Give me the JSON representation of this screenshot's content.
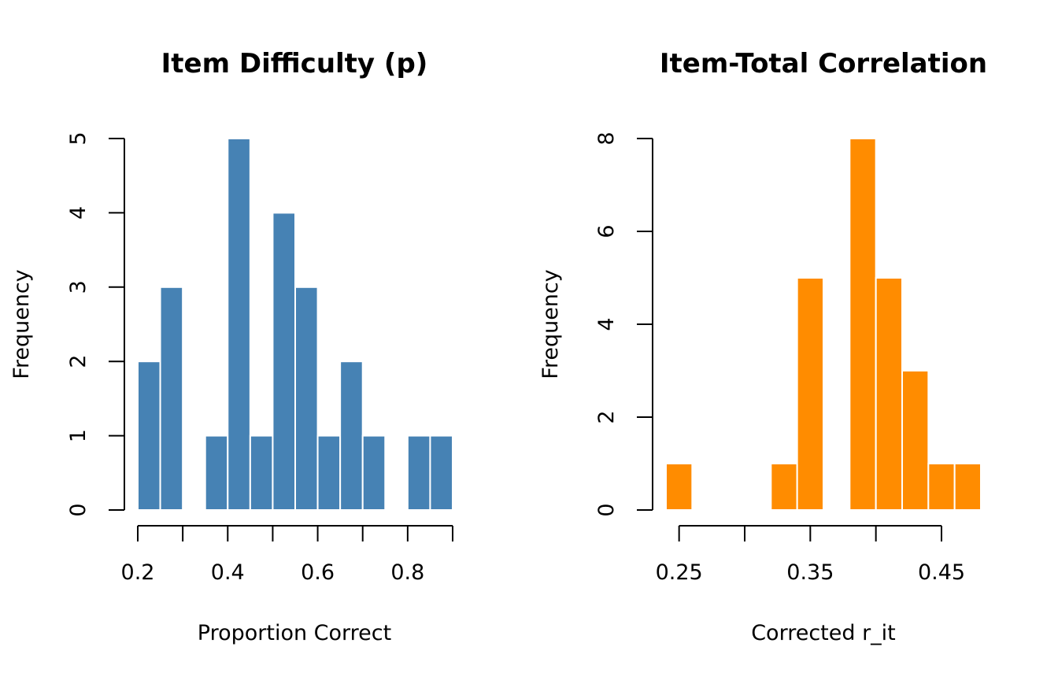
{
  "chart_data": [
    {
      "type": "bar",
      "title": "Item Difficulty (p)",
      "xlabel": "Proportion Correct",
      "ylabel": "Frequency",
      "color": "#4682B4",
      "bins": [
        {
          "x0": 0.2,
          "x1": 0.25,
          "count": 2
        },
        {
          "x0": 0.25,
          "x1": 0.3,
          "count": 3
        },
        {
          "x0": 0.3,
          "x1": 0.35,
          "count": 0
        },
        {
          "x0": 0.35,
          "x1": 0.4,
          "count": 1
        },
        {
          "x0": 0.4,
          "x1": 0.45,
          "count": 5
        },
        {
          "x0": 0.45,
          "x1": 0.5,
          "count": 1
        },
        {
          "x0": 0.5,
          "x1": 0.55,
          "count": 4
        },
        {
          "x0": 0.55,
          "x1": 0.6,
          "count": 3
        },
        {
          "x0": 0.6,
          "x1": 0.65,
          "count": 1
        },
        {
          "x0": 0.65,
          "x1": 0.7,
          "count": 2
        },
        {
          "x0": 0.7,
          "x1": 0.75,
          "count": 1
        },
        {
          "x0": 0.75,
          "x1": 0.8,
          "count": 0
        },
        {
          "x0": 0.8,
          "x1": 0.85,
          "count": 1
        },
        {
          "x0": 0.85,
          "x1": 0.9,
          "count": 1
        }
      ],
      "xlim": [
        0.2,
        0.9
      ],
      "ylim": [
        0,
        5
      ],
      "x_ticks": [
        0.2,
        0.3,
        0.4,
        0.5,
        0.6,
        0.7,
        0.8,
        0.9
      ],
      "x_tick_labels": [
        "0.2",
        "",
        "0.4",
        "",
        "0.6",
        "",
        "0.8",
        ""
      ],
      "y_ticks": [
        0,
        1,
        2,
        3,
        4,
        5
      ],
      "y_tick_labels": [
        "0",
        "1",
        "2",
        "3",
        "4",
        "5"
      ],
      "grid": false
    },
    {
      "type": "bar",
      "title": "Item-Total Correlation",
      "xlabel": "Corrected r_it",
      "ylabel": "Frequency",
      "color": "#FF8C00",
      "bins": [
        {
          "x0": 0.24,
          "x1": 0.26,
          "count": 1
        },
        {
          "x0": 0.26,
          "x1": 0.28,
          "count": 0
        },
        {
          "x0": 0.28,
          "x1": 0.3,
          "count": 0
        },
        {
          "x0": 0.3,
          "x1": 0.32,
          "count": 0
        },
        {
          "x0": 0.32,
          "x1": 0.34,
          "count": 1
        },
        {
          "x0": 0.34,
          "x1": 0.36,
          "count": 5
        },
        {
          "x0": 0.36,
          "x1": 0.38,
          "count": 0
        },
        {
          "x0": 0.38,
          "x1": 0.4,
          "count": 8
        },
        {
          "x0": 0.4,
          "x1": 0.42,
          "count": 5
        },
        {
          "x0": 0.42,
          "x1": 0.44,
          "count": 3
        },
        {
          "x0": 0.44,
          "x1": 0.46,
          "count": 1
        },
        {
          "x0": 0.46,
          "x1": 0.48,
          "count": 1
        }
      ],
      "xlim": [
        0.24,
        0.48
      ],
      "ylim": [
        0,
        8
      ],
      "x_ticks": [
        0.25,
        0.3,
        0.35,
        0.4,
        0.45
      ],
      "x_tick_labels": [
        "0.25",
        "",
        "0.35",
        "",
        "0.45"
      ],
      "y_ticks": [
        0,
        2,
        4,
        6,
        8
      ],
      "y_tick_labels": [
        "0",
        "2",
        "4",
        "6",
        "8"
      ],
      "grid": false
    }
  ]
}
